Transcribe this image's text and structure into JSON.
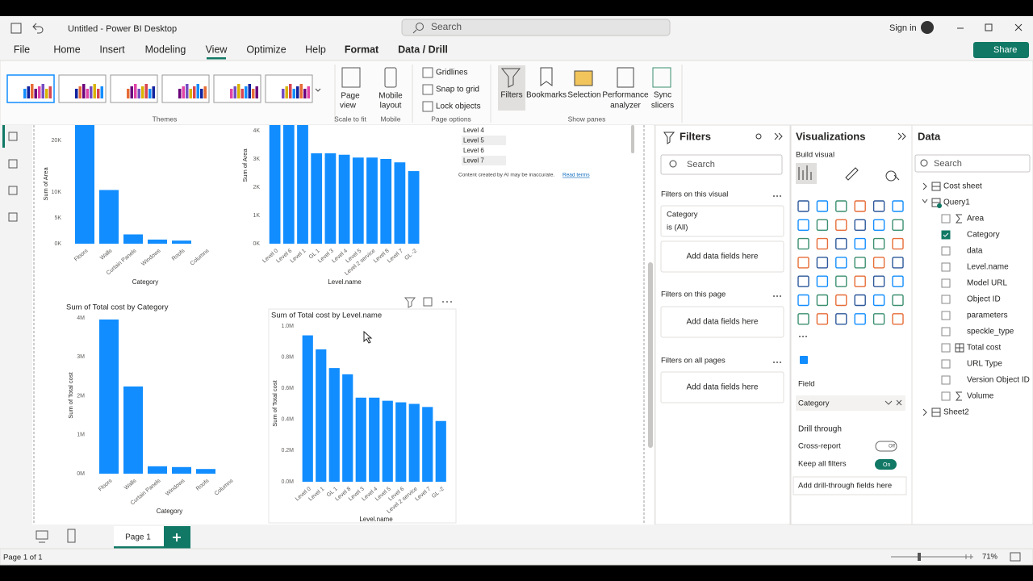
{
  "titlebar": {
    "title": "Untitled - Power BI Desktop",
    "search": "Search",
    "sign_in": "Sign in",
    "share": "Share"
  },
  "menu": [
    "File",
    "Home",
    "Insert",
    "Modeling",
    "View",
    "Optimize",
    "Help",
    "Format",
    "Data / Drill"
  ],
  "ribbon": {
    "themes": "Themes",
    "page": "Page",
    "view": "view",
    "mobile_1": "Mobile",
    "mobile_2": "layout",
    "scale_to_fit": "Scale to fit",
    "mobile_group": "Mobile",
    "gridlines": "Gridlines",
    "snap": "Snap to grid",
    "lock": "Lock objects",
    "page_options": "Page options",
    "filters": "Filters",
    "bookmarks": "Bookmarks",
    "selection": "Selection",
    "performance_1": "Performance",
    "performance_2": "analyzer",
    "sync_1": "Sync",
    "sync_2": "slicers",
    "show_panes": "Show panes"
  },
  "slicer_levels": [
    "Level 4",
    "Level 5",
    "Level 6",
    "Level 7"
  ],
  "ai_note": "Content created by AI may be inaccurate.",
  "read_terms": "Read terms",
  "visuals": [
    {
      "type": "bar",
      "x_label": "Category",
      "y_label": "Sum of Area",
      "color": "#118dff",
      "categories": [
        "Floors",
        "Walls",
        "Curtain Panels",
        "Windows",
        "Roofs",
        "Columns"
      ],
      "values": [
        24500,
        10400,
        1800,
        800,
        600,
        0
      ],
      "ylim": [
        0,
        25000
      ],
      "yticks": [
        {
          "value": 0,
          "label": "0K"
        },
        {
          "value": 5000,
          "label": "5K"
        },
        {
          "value": 10000,
          "label": "10K"
        },
        {
          "value": 20000,
          "label": "20K"
        }
      ]
    },
    {
      "type": "bar",
      "x_label": "Level.name",
      "y_label": "Sum of Area",
      "color": "#118dff",
      "categories": [
        "Level 0",
        "Level 6",
        "Level 1",
        "GL 1",
        "Level 3",
        "Level 4",
        "Level 5",
        "Level 2 service",
        "Level 8",
        "Level 7",
        "GL -2"
      ],
      "values": [
        4500,
        4450,
        4450,
        3200,
        3200,
        3150,
        3050,
        3050,
        3000,
        2880,
        2570
      ],
      "ylim": [
        0,
        4500
      ],
      "yticks": [
        {
          "value": 0,
          "label": "0K"
        },
        {
          "value": 1000,
          "label": "1K"
        },
        {
          "value": 2000,
          "label": "2K"
        },
        {
          "value": 3000,
          "label": "3K"
        },
        {
          "value": 4000,
          "label": "4K"
        }
      ]
    },
    {
      "type": "bar",
      "title": "Sum of Total cost by Category",
      "x_label": "Category",
      "y_label": "Sum of Total cost",
      "color": "#118dff",
      "categories": [
        "Floors",
        "Walls",
        "Curtain Panels",
        "Windows",
        "Roofs",
        "Columns"
      ],
      "values": [
        3960000,
        2240000,
        190000,
        170000,
        120000,
        0
      ],
      "ylim": [
        0,
        4000000
      ],
      "yticks": [
        {
          "value": 0,
          "label": "0M"
        },
        {
          "value": 1000000,
          "label": "1M"
        },
        {
          "value": 2000000,
          "label": "2M"
        },
        {
          "value": 3000000,
          "label": "3M"
        },
        {
          "value": 4000000,
          "label": "4M"
        }
      ]
    },
    {
      "type": "bar",
      "title": "Sum of Total cost by Level.name",
      "x_label": "Level.name",
      "y_label": "Sum of Total cost",
      "color": "#118dff",
      "categories": [
        "Level 0",
        "Level 1",
        "GL 1",
        "Level 8",
        "Level 3",
        "Level 4",
        "Level 5",
        "Level 6",
        "Level 2 service",
        "Level 7",
        "GL -2"
      ],
      "values": [
        940000,
        850000,
        730000,
        690000,
        540000,
        540000,
        520000,
        510000,
        500000,
        480000,
        390000
      ],
      "ylim": [
        0,
        1000000
      ],
      "yticks": [
        {
          "value": 0,
          "label": "0.0M"
        },
        {
          "value": 200000,
          "label": "0.2M"
        },
        {
          "value": 400000,
          "label": "0.4M"
        },
        {
          "value": 600000,
          "label": "0.6M"
        },
        {
          "value": 800000,
          "label": "0.8M"
        },
        {
          "value": 1000000,
          "label": "1.0M"
        }
      ]
    }
  ],
  "filters": {
    "title": "Filters",
    "search": "Search",
    "on_visual": "Filters on this visual",
    "card_field": "Category",
    "card_state": "is (All)",
    "add_1": "Add data fields here",
    "on_page": "Filters on this page",
    "add_2": "Add data fields here",
    "on_all": "Filters on all pages",
    "add_3": "Add data fields here"
  },
  "visualizations": {
    "title": "Visualizations",
    "build": "Build visual",
    "field": "Field",
    "field_value": "Category",
    "drill": "Drill through",
    "cross_report": "Cross-report",
    "cross_state": "Off",
    "keep_filters": "Keep all filters",
    "keep_state": "On",
    "add_drill": "Add drill-through fields here"
  },
  "data_pane": {
    "title": "Data",
    "search": "Search",
    "tables": [
      "Cost sheet",
      "Query1",
      "Sheet2"
    ],
    "fields": [
      "Area",
      "Category",
      "data",
      "Level.name",
      "Model URL",
      "Object ID",
      "parameters",
      "speckle_type",
      "Total cost",
      "URL Type",
      "Version Object ID",
      "Volume"
    ]
  },
  "footer": {
    "page_tab": "Page 1",
    "status": "Page 1 of 1",
    "zoom": "71%"
  }
}
